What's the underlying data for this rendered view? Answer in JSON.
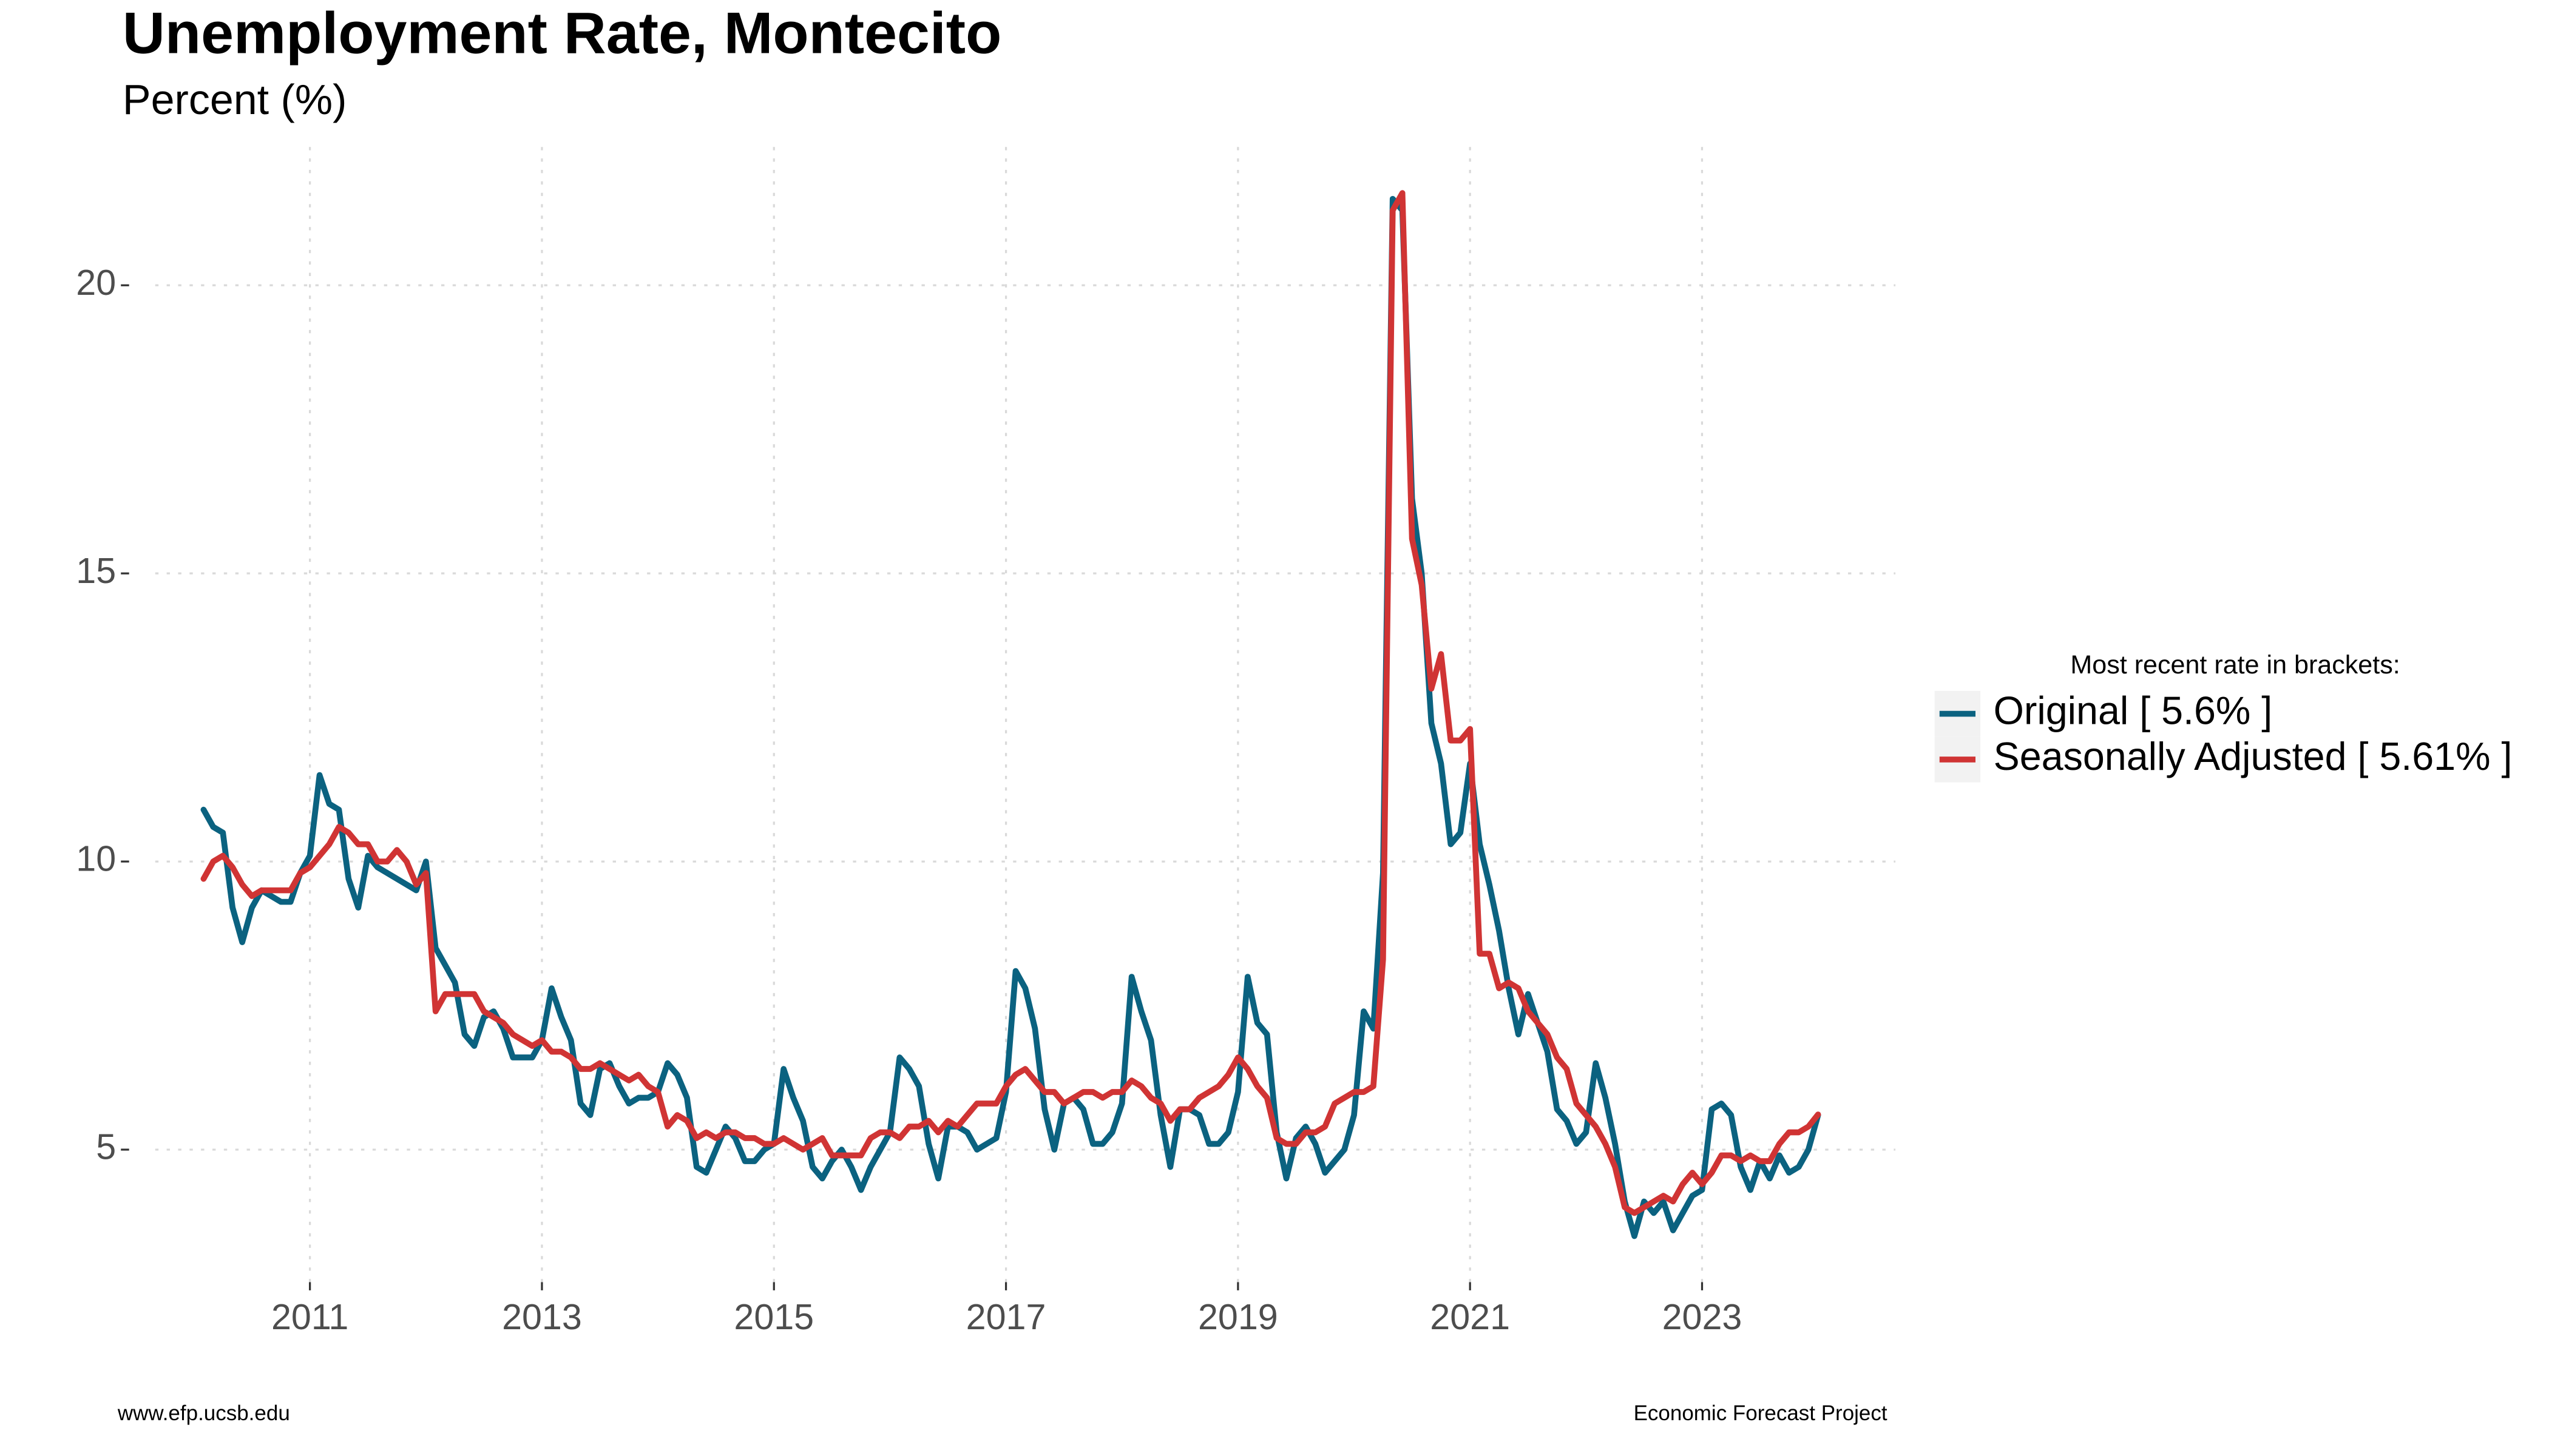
{
  "chart_data": {
    "type": "line",
    "title": "Unemployment Rate, Montecito",
    "subtitle": "Percent (%)",
    "legend_title": "Most recent rate in brackets:",
    "legend_position": "right",
    "source_left": "www.efp.ucsb.edu",
    "source_right": "Economic Forecast Project",
    "grid": true,
    "xlim": [
      "2009-09",
      "2024-09"
    ],
    "xticks": [
      "2011",
      "2013",
      "2015",
      "2017",
      "2019",
      "2021",
      "2023"
    ],
    "ylim": [
      2.7,
      22.4
    ],
    "yticks": [
      5,
      10,
      15,
      20
    ],
    "x": [
      "2010-02",
      "2010-03",
      "2010-04",
      "2010-05",
      "2010-06",
      "2010-07",
      "2010-08",
      "2010-09",
      "2010-10",
      "2010-11",
      "2010-12",
      "2011-01",
      "2011-02",
      "2011-03",
      "2011-04",
      "2011-05",
      "2011-06",
      "2011-07",
      "2011-08",
      "2011-09",
      "2011-10",
      "2011-11",
      "2011-12",
      "2012-01",
      "2012-02",
      "2012-03",
      "2012-04",
      "2012-05",
      "2012-06",
      "2012-07",
      "2012-08",
      "2012-09",
      "2012-10",
      "2012-11",
      "2012-12",
      "2013-01",
      "2013-02",
      "2013-03",
      "2013-04",
      "2013-05",
      "2013-06",
      "2013-07",
      "2013-08",
      "2013-09",
      "2013-10",
      "2013-11",
      "2013-12",
      "2014-01",
      "2014-02",
      "2014-03",
      "2014-04",
      "2014-05",
      "2014-06",
      "2014-07",
      "2014-08",
      "2014-09",
      "2014-10",
      "2014-11",
      "2014-12",
      "2015-01",
      "2015-02",
      "2015-03",
      "2015-04",
      "2015-05",
      "2015-06",
      "2015-07",
      "2015-08",
      "2015-09",
      "2015-10",
      "2015-11",
      "2015-12",
      "2016-01",
      "2016-02",
      "2016-03",
      "2016-04",
      "2016-05",
      "2016-06",
      "2016-07",
      "2016-08",
      "2016-09",
      "2016-10",
      "2016-11",
      "2016-12",
      "2017-01",
      "2017-02",
      "2017-03",
      "2017-04",
      "2017-05",
      "2017-06",
      "2017-07",
      "2017-08",
      "2017-09",
      "2017-10",
      "2017-11",
      "2017-12",
      "2018-01",
      "2018-02",
      "2018-03",
      "2018-04",
      "2018-05",
      "2018-06",
      "2018-07",
      "2018-08",
      "2018-09",
      "2018-10",
      "2018-11",
      "2018-12",
      "2019-01",
      "2019-02",
      "2019-03",
      "2019-04",
      "2019-05",
      "2019-06",
      "2019-07",
      "2019-08",
      "2019-09",
      "2019-10",
      "2019-11",
      "2019-12",
      "2020-01",
      "2020-02",
      "2020-03",
      "2020-04",
      "2020-05",
      "2020-06",
      "2020-07",
      "2020-08",
      "2020-09",
      "2020-10",
      "2020-11",
      "2020-12",
      "2021-01",
      "2021-02",
      "2021-03",
      "2021-04",
      "2021-05",
      "2021-06",
      "2021-07",
      "2021-08",
      "2021-09",
      "2021-10",
      "2021-11",
      "2021-12",
      "2022-01",
      "2022-02",
      "2022-03",
      "2022-04",
      "2022-05",
      "2022-06",
      "2022-07",
      "2022-08",
      "2022-09",
      "2022-10",
      "2022-11",
      "2022-12",
      "2023-01",
      "2023-02",
      "2023-03",
      "2023-04",
      "2023-05",
      "2023-06",
      "2023-07",
      "2023-08",
      "2023-09",
      "2023-10",
      "2023-11",
      "2023-12",
      "2024-01"
    ],
    "series": [
      {
        "name": "Original [ 5.6% ]",
        "color": "#0b6280",
        "values": [
          10.9,
          10.6,
          10.5,
          9.2,
          8.6,
          9.2,
          9.5,
          9.4,
          9.3,
          9.3,
          9.8,
          10.1,
          11.5,
          11.0,
          10.9,
          9.7,
          9.2,
          10.1,
          9.9,
          9.8,
          9.7,
          9.6,
          9.5,
          10.0,
          8.5,
          8.2,
          7.9,
          7.0,
          6.8,
          7.3,
          7.4,
          7.1,
          6.6,
          6.6,
          6.6,
          6.9,
          7.8,
          7.3,
          6.9,
          5.8,
          5.6,
          6.4,
          6.5,
          6.1,
          5.8,
          5.9,
          5.9,
          6.0,
          6.5,
          6.3,
          5.9,
          4.7,
          4.6,
          5.0,
          5.4,
          5.2,
          4.8,
          4.8,
          5.0,
          5.1,
          6.4,
          5.9,
          5.5,
          4.7,
          4.5,
          4.8,
          5.0,
          4.7,
          4.3,
          4.7,
          5.0,
          5.3,
          6.6,
          6.4,
          6.1,
          5.1,
          4.5,
          5.4,
          5.4,
          5.3,
          5.0,
          5.1,
          5.2,
          6.0,
          8.1,
          7.8,
          7.1,
          5.7,
          5.0,
          5.8,
          5.9,
          5.7,
          5.1,
          5.1,
          5.3,
          5.8,
          8.0,
          7.4,
          6.9,
          5.6,
          4.7,
          5.7,
          5.7,
          5.6,
          5.1,
          5.1,
          5.3,
          6.0,
          8.0,
          7.2,
          7.0,
          5.3,
          4.5,
          5.2,
          5.4,
          5.1,
          4.6,
          4.8,
          5.0,
          5.6,
          7.4,
          7.1,
          9.8,
          21.5,
          21.3,
          16.3,
          15.0,
          12.4,
          11.7,
          10.3,
          10.5,
          11.7,
          10.3,
          9.6,
          8.8,
          7.8,
          7.0,
          7.7,
          7.2,
          6.7,
          5.7,
          5.5,
          5.1,
          5.3,
          6.5,
          5.9,
          5.1,
          4.1,
          3.5,
          4.1,
          3.9,
          4.1,
          3.6,
          3.9,
          4.2,
          4.3,
          5.7,
          5.8,
          5.6,
          4.7,
          4.3,
          4.8,
          4.5,
          4.9,
          4.6,
          4.7,
          5.0,
          5.6
        ]
      },
      {
        "name": "Seasonally Adjusted [ 5.61% ]",
        "color": "#d03434",
        "values": [
          9.7,
          10.0,
          10.1,
          9.9,
          9.6,
          9.4,
          9.5,
          9.5,
          9.5,
          9.5,
          9.8,
          9.9,
          10.1,
          10.3,
          10.6,
          10.5,
          10.3,
          10.3,
          10.0,
          10.0,
          10.2,
          10.0,
          9.6,
          9.8,
          7.4,
          7.7,
          7.7,
          7.7,
          7.7,
          7.4,
          7.3,
          7.2,
          7.0,
          6.9,
          6.8,
          6.9,
          6.7,
          6.7,
          6.6,
          6.4,
          6.4,
          6.5,
          6.4,
          6.3,
          6.2,
          6.3,
          6.1,
          6.0,
          5.4,
          5.6,
          5.5,
          5.2,
          5.3,
          5.2,
          5.3,
          5.3,
          5.2,
          5.2,
          5.1,
          5.1,
          5.2,
          5.1,
          5.0,
          5.1,
          5.2,
          4.9,
          4.9,
          4.9,
          4.9,
          5.2,
          5.3,
          5.3,
          5.2,
          5.4,
          5.4,
          5.5,
          5.3,
          5.5,
          5.4,
          5.6,
          5.8,
          5.8,
          5.8,
          6.1,
          6.3,
          6.4,
          6.2,
          6.0,
          6.0,
          5.8,
          5.9,
          6.0,
          6.0,
          5.9,
          6.0,
          6.0,
          6.2,
          6.1,
          5.9,
          5.8,
          5.5,
          5.7,
          5.7,
          5.9,
          6.0,
          6.1,
          6.3,
          6.6,
          6.4,
          6.1,
          5.9,
          5.2,
          5.1,
          5.1,
          5.3,
          5.3,
          5.4,
          5.8,
          5.9,
          6.0,
          6.0,
          6.1,
          8.3,
          21.3,
          21.6,
          15.6,
          14.8,
          13.0,
          13.6,
          12.1,
          12.1,
          12.3,
          8.4,
          8.4,
          7.8,
          7.9,
          7.8,
          7.4,
          7.2,
          7.0,
          6.6,
          6.4,
          5.8,
          5.6,
          5.4,
          5.1,
          4.7,
          4.0,
          3.9,
          4.0,
          4.1,
          4.2,
          4.1,
          4.4,
          4.6,
          4.4,
          4.6,
          4.9,
          4.9,
          4.8,
          4.9,
          4.8,
          4.8,
          5.1,
          5.3,
          5.3,
          5.4,
          5.61
        ]
      }
    ]
  }
}
